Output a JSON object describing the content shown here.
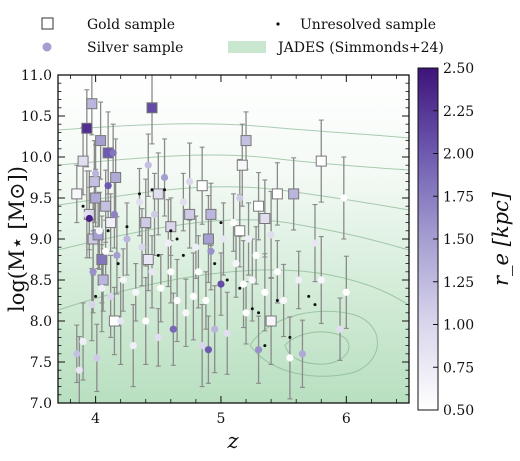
{
  "chart_data": {
    "type": "scatter",
    "xlabel": "z",
    "ylabel": "log(M⋆ [M⊙])",
    "xlim": [
      3.7,
      6.5
    ],
    "ylim": [
      7.0,
      11.0
    ],
    "x_ticks": [
      "4",
      "5",
      "6"
    ],
    "y_ticks": [
      "7.0",
      "7.5",
      "8.0",
      "8.5",
      "9.0",
      "9.5",
      "10.0",
      "10.5",
      "11.0"
    ],
    "colorbar": {
      "label": "r_e [kpc]",
      "range": [
        0.5,
        2.5
      ],
      "ticks": [
        "0.50",
        "0.75",
        "1.00",
        "1.25",
        "1.50",
        "1.75",
        "2.00",
        "2.25",
        "2.50"
      ],
      "colors": [
        "#ffffff",
        "#d9d6ec",
        "#a59fd1",
        "#6e5ab0",
        "#3d137a"
      ]
    },
    "background": {
      "name": "JADES (Simmonds+24)",
      "color": "#9cd1a6"
    },
    "legend": {
      "position": "top",
      "entries": [
        {
          "label": "Gold sample",
          "marker": "square-open"
        },
        {
          "label": "Unresolved sample",
          "marker": "dot"
        },
        {
          "label": "Silver sample",
          "marker": "circle-filled"
        },
        {
          "label": "JADES (Simmonds+24)",
          "marker": "patch"
        }
      ]
    },
    "series": [
      {
        "name": "Gold sample",
        "marker": "square",
        "points": [
          {
            "x": 3.85,
            "y": 9.55,
            "re": 0.6
          },
          {
            "x": 3.9,
            "y": 9.95,
            "re": 0.9
          },
          {
            "x": 3.93,
            "y": 10.35,
            "re": 2.3
          },
          {
            "x": 3.95,
            "y": 9.3,
            "re": 1.0
          },
          {
            "x": 3.97,
            "y": 10.65,
            "re": 1.3
          },
          {
            "x": 3.98,
            "y": 9.0,
            "re": 1.1
          },
          {
            "x": 3.99,
            "y": 9.7,
            "re": 1.2
          },
          {
            "x": 4.0,
            "y": 9.5,
            "re": 1.4
          },
          {
            "x": 4.02,
            "y": 9.05,
            "re": 1.5
          },
          {
            "x": 4.04,
            "y": 10.2,
            "re": 1.5
          },
          {
            "x": 4.05,
            "y": 8.75,
            "re": 1.8
          },
          {
            "x": 4.06,
            "y": 8.5,
            "re": 1.3
          },
          {
            "x": 4.08,
            "y": 9.4,
            "re": 1.2
          },
          {
            "x": 4.1,
            "y": 10.05,
            "re": 2.0
          },
          {
            "x": 4.12,
            "y": 9.2,
            "re": 0.7
          },
          {
            "x": 4.15,
            "y": 8.0,
            "re": 0.5
          },
          {
            "x": 4.16,
            "y": 9.75,
            "re": 1.4
          },
          {
            "x": 4.4,
            "y": 9.2,
            "re": 1.1
          },
          {
            "x": 4.42,
            "y": 8.75,
            "re": 0.8
          },
          {
            "x": 4.45,
            "y": 10.6,
            "re": 2.1
          },
          {
            "x": 4.5,
            "y": 9.55,
            "re": 0.9
          },
          {
            "x": 4.6,
            "y": 9.15,
            "re": 1.0
          },
          {
            "x": 4.75,
            "y": 9.3,
            "re": 1.1
          },
          {
            "x": 4.85,
            "y": 9.65,
            "re": 0.5
          },
          {
            "x": 4.9,
            "y": 9.0,
            "re": 1.5
          },
          {
            "x": 4.92,
            "y": 9.3,
            "re": 1.3
          },
          {
            "x": 5.15,
            "y": 9.1,
            "re": 0.5
          },
          {
            "x": 5.17,
            "y": 9.9,
            "re": 0.6
          },
          {
            "x": 5.2,
            "y": 10.2,
            "re": 1.2
          },
          {
            "x": 5.3,
            "y": 9.4,
            "re": 0.5
          },
          {
            "x": 5.35,
            "y": 9.25,
            "re": 0.9
          },
          {
            "x": 5.4,
            "y": 8.0,
            "re": 0.6
          },
          {
            "x": 5.45,
            "y": 9.55,
            "re": 0.5
          },
          {
            "x": 5.58,
            "y": 9.55,
            "re": 1.3
          },
          {
            "x": 5.8,
            "y": 9.95,
            "re": 0.5
          }
        ]
      },
      {
        "name": "Silver sample",
        "marker": "circle",
        "points": [
          {
            "x": 3.85,
            "y": 7.6,
            "re": 1.2
          },
          {
            "x": 3.87,
            "y": 7.4,
            "re": 0.8
          },
          {
            "x": 3.9,
            "y": 7.75,
            "re": 0.7
          },
          {
            "x": 3.93,
            "y": 9.3,
            "re": 0.9
          },
          {
            "x": 3.95,
            "y": 9.25,
            "re": 2.4
          },
          {
            "x": 3.97,
            "y": 8.2,
            "re": 1.0
          },
          {
            "x": 3.98,
            "y": 8.6,
            "re": 1.6
          },
          {
            "x": 4.0,
            "y": 9.8,
            "re": 1.3
          },
          {
            "x": 4.01,
            "y": 7.55,
            "re": 1.1
          },
          {
            "x": 4.03,
            "y": 9.1,
            "re": 0.6
          },
          {
            "x": 4.05,
            "y": 8.4,
            "re": 0.7
          },
          {
            "x": 4.08,
            "y": 8.85,
            "re": 0.5
          },
          {
            "x": 4.1,
            "y": 9.65,
            "re": 2.0
          },
          {
            "x": 4.12,
            "y": 8.3,
            "re": 1.0
          },
          {
            "x": 4.14,
            "y": 10.05,
            "re": 1.8
          },
          {
            "x": 4.15,
            "y": 9.3,
            "re": 1.7
          },
          {
            "x": 4.17,
            "y": 8.8,
            "re": 1.5
          },
          {
            "x": 4.2,
            "y": 8.0,
            "re": 0.8
          },
          {
            "x": 4.22,
            "y": 8.5,
            "re": 0.6
          },
          {
            "x": 4.25,
            "y": 9.0,
            "re": 1.3
          },
          {
            "x": 4.3,
            "y": 7.7,
            "re": 0.7
          },
          {
            "x": 4.32,
            "y": 8.35,
            "re": 0.6
          },
          {
            "x": 4.35,
            "y": 9.45,
            "re": 0.9
          },
          {
            "x": 4.37,
            "y": 8.9,
            "re": 1.0
          },
          {
            "x": 4.4,
            "y": 8.0,
            "re": 0.5
          },
          {
            "x": 4.42,
            "y": 9.9,
            "re": 1.2
          },
          {
            "x": 4.45,
            "y": 8.6,
            "re": 0.8
          },
          {
            "x": 4.47,
            "y": 9.3,
            "re": 1.1
          },
          {
            "x": 4.5,
            "y": 7.8,
            "re": 0.9
          },
          {
            "x": 4.52,
            "y": 8.4,
            "re": 0.5
          },
          {
            "x": 4.55,
            "y": 9.75,
            "re": 1.5
          },
          {
            "x": 4.58,
            "y": 8.95,
            "re": 0.7
          },
          {
            "x": 4.6,
            "y": 8.6,
            "re": 0.5
          },
          {
            "x": 4.62,
            "y": 7.9,
            "re": 1.9
          },
          {
            "x": 4.65,
            "y": 8.25,
            "re": 0.5
          },
          {
            "x": 4.7,
            "y": 9.45,
            "re": 0.9
          },
          {
            "x": 4.72,
            "y": 8.1,
            "re": 0.6
          },
          {
            "x": 4.75,
            "y": 9.7,
            "re": 1.0
          },
          {
            "x": 4.78,
            "y": 8.3,
            "re": 0.5
          },
          {
            "x": 4.8,
            "y": 8.9,
            "re": 0.7
          },
          {
            "x": 4.82,
            "y": 8.6,
            "re": 0.5
          },
          {
            "x": 4.85,
            "y": 7.7,
            "re": 1.0
          },
          {
            "x": 4.88,
            "y": 8.25,
            "re": 0.5
          },
          {
            "x": 4.9,
            "y": 7.65,
            "re": 2.0
          },
          {
            "x": 4.92,
            "y": 8.85,
            "re": 1.6
          },
          {
            "x": 4.95,
            "y": 7.9,
            "re": 1.3
          },
          {
            "x": 5.0,
            "y": 8.45,
            "re": 2.1
          },
          {
            "x": 5.02,
            "y": 9.0,
            "re": 0.8
          },
          {
            "x": 5.05,
            "y": 7.85,
            "re": 0.9
          },
          {
            "x": 5.1,
            "y": 9.2,
            "re": 0.5
          },
          {
            "x": 5.12,
            "y": 8.7,
            "re": 0.6
          },
          {
            "x": 5.15,
            "y": 9.5,
            "re": 1.1
          },
          {
            "x": 5.18,
            "y": 8.45,
            "re": 0.5
          },
          {
            "x": 5.2,
            "y": 8.1,
            "re": 0.5
          },
          {
            "x": 5.22,
            "y": 9.0,
            "re": 0.7
          },
          {
            "x": 5.25,
            "y": 8.5,
            "re": 0.6
          },
          {
            "x": 5.28,
            "y": 8.8,
            "re": 0.5
          },
          {
            "x": 5.3,
            "y": 7.65,
            "re": 1.6
          },
          {
            "x": 5.35,
            "y": 8.35,
            "re": 0.5
          },
          {
            "x": 5.4,
            "y": 9.05,
            "re": 0.9
          },
          {
            "x": 5.45,
            "y": 8.6,
            "re": 0.5
          },
          {
            "x": 5.5,
            "y": 8.25,
            "re": 0.6
          },
          {
            "x": 5.55,
            "y": 7.55,
            "re": 0.5
          },
          {
            "x": 5.62,
            "y": 8.5,
            "re": 0.7
          },
          {
            "x": 5.65,
            "y": 7.6,
            "re": 1.4
          },
          {
            "x": 5.75,
            "y": 8.95,
            "re": 0.8
          },
          {
            "x": 5.8,
            "y": 8.5,
            "re": 0.6
          },
          {
            "x": 5.95,
            "y": 7.9,
            "re": 0.9
          },
          {
            "x": 6.0,
            "y": 8.35,
            "re": 0.5
          },
          {
            "x": 5.98,
            "y": 9.5,
            "re": 0.5
          }
        ]
      },
      {
        "name": "Unresolved sample",
        "marker": "dot",
        "points": [
          {
            "x": 3.9,
            "y": 9.4
          },
          {
            "x": 4.0,
            "y": 8.3
          },
          {
            "x": 4.1,
            "y": 9.1
          },
          {
            "x": 4.18,
            "y": 8.7
          },
          {
            "x": 4.25,
            "y": 9.15
          },
          {
            "x": 4.35,
            "y": 9.55
          },
          {
            "x": 4.45,
            "y": 9.6
          },
          {
            "x": 4.5,
            "y": 8.8
          },
          {
            "x": 4.55,
            "y": 9.6
          },
          {
            "x": 4.6,
            "y": 9.1
          },
          {
            "x": 4.65,
            "y": 9.0
          },
          {
            "x": 4.7,
            "y": 8.8
          },
          {
            "x": 4.95,
            "y": 8.7
          },
          {
            "x": 5.0,
            "y": 9.2
          },
          {
            "x": 5.05,
            "y": 8.5
          },
          {
            "x": 5.15,
            "y": 8.4
          },
          {
            "x": 5.25,
            "y": 8.15
          },
          {
            "x": 5.3,
            "y": 8.1
          },
          {
            "x": 5.35,
            "y": 7.7
          },
          {
            "x": 5.45,
            "y": 8.25
          },
          {
            "x": 5.55,
            "y": 7.8
          },
          {
            "x": 5.7,
            "y": 8.3
          },
          {
            "x": 5.75,
            "y": 8.2
          }
        ]
      }
    ]
  }
}
